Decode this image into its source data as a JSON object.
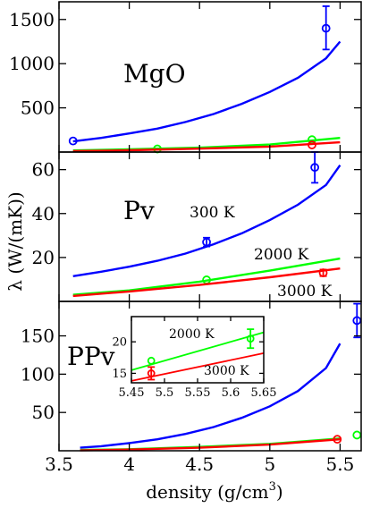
{
  "chart_data": {
    "type": "line",
    "xlabel": "density (g/cm",
    "xlabel_sup": "3",
    "xlabel_close": ")",
    "ylabel": "λ (W/(mK))",
    "xlim": [
      3.5,
      5.65
    ],
    "xticks": [
      3.5,
      4,
      4.5,
      5,
      5.5
    ],
    "xtick_labels": [
      "3.5",
      "4",
      "4.5",
      "5",
      "5.5"
    ],
    "colors": {
      "300 K": "#0000ff",
      "2000 K": "#00ff00",
      "3000 K": "#ff0000"
    },
    "panels": [
      {
        "label": "MgO",
        "ylim": [
          0,
          1700
        ],
        "yticks": [
          500,
          1000,
          1500
        ],
        "ytick_labels": [
          "500",
          "1000",
          "1500"
        ],
        "series": [
          {
            "key": "300 K",
            "curve": [
              [
                3.6,
                120
              ],
              [
                3.8,
                160
              ],
              [
                4.0,
                210
              ],
              [
                4.2,
                265
              ],
              [
                4.4,
                340
              ],
              [
                4.6,
                430
              ],
              [
                4.8,
                545
              ],
              [
                5.0,
                680
              ],
              [
                5.2,
                840
              ],
              [
                5.4,
                1060
              ],
              [
                5.5,
                1250
              ]
            ],
            "points": [
              {
                "x": 3.6,
                "y": 125
              },
              {
                "x": 5.4,
                "y": 1400,
                "err": [
                  1160,
                  1650
                ]
              }
            ]
          },
          {
            "key": "2000 K",
            "curve": [
              [
                3.6,
                18
              ],
              [
                4.0,
                30
              ],
              [
                4.5,
                50
              ],
              [
                5.0,
                85
              ],
              [
                5.5,
                160
              ]
            ],
            "points": [
              {
                "x": 4.2,
                "y": 35
              },
              {
                "x": 5.3,
                "y": 140
              }
            ]
          },
          {
            "key": "3000 K",
            "curve": [
              [
                3.6,
                10
              ],
              [
                4.0,
                20
              ],
              [
                4.5,
                38
              ],
              [
                5.0,
                62
              ],
              [
                5.5,
                110
              ]
            ],
            "points": [
              {
                "x": 5.3,
                "y": 80
              }
            ]
          }
        ]
      },
      {
        "label": "Pv",
        "ylim": [
          0,
          68
        ],
        "yticks": [
          20,
          40,
          60
        ],
        "ytick_labels": [
          "20",
          "40",
          "60"
        ],
        "annotations": [
          "300 K",
          "2000 K",
          "3000 K"
        ],
        "series": [
          {
            "key": "300 K",
            "curve": [
              [
                3.6,
                11.5
              ],
              [
                3.8,
                13.5
              ],
              [
                4.0,
                15.8
              ],
              [
                4.2,
                18.5
              ],
              [
                4.4,
                21.8
              ],
              [
                4.6,
                26
              ],
              [
                4.8,
                31
              ],
              [
                5.0,
                37
              ],
              [
                5.2,
                44
              ],
              [
                5.4,
                53
              ],
              [
                5.5,
                62
              ]
            ],
            "points": [
              {
                "x": 4.55,
                "y": 27,
                "err": [
                  25,
                  29
                ]
              },
              {
                "x": 5.32,
                "y": 61,
                "err": [
                  54,
                  68
                ]
              }
            ]
          },
          {
            "key": "2000 K",
            "curve": [
              [
                3.6,
                3
              ],
              [
                4.0,
                5
              ],
              [
                4.5,
                9
              ],
              [
                5.0,
                14
              ],
              [
                5.5,
                19.5
              ]
            ],
            "points": [
              {
                "x": 4.55,
                "y": 9.8
              }
            ]
          },
          {
            "key": "3000 K",
            "curve": [
              [
                3.6,
                2.5
              ],
              [
                4.0,
                4.5
              ],
              [
                4.5,
                7.5
              ],
              [
                5.0,
                11
              ],
              [
                5.5,
                15
              ]
            ],
            "points": [
              {
                "x": 5.38,
                "y": 13,
                "err": [
                  11.5,
                  14.5
                ]
              }
            ]
          }
        ]
      },
      {
        "label": "PPv",
        "ylim": [
          0,
          195
        ],
        "yticks": [
          50,
          100,
          150
        ],
        "ytick_labels": [
          "50",
          "100",
          "150"
        ],
        "series": [
          {
            "key": "300 K",
            "curve": [
              [
                3.65,
                4
              ],
              [
                3.8,
                6
              ],
              [
                4.0,
                10
              ],
              [
                4.2,
                15
              ],
              [
                4.4,
                22
              ],
              [
                4.6,
                31
              ],
              [
                4.8,
                43
              ],
              [
                5.0,
                58
              ],
              [
                5.2,
                78
              ],
              [
                5.4,
                108
              ],
              [
                5.5,
                140
              ]
            ],
            "points": [
              {
                "x": 5.62,
                "y": 170,
                "err": [
                  148,
                  192
                ]
              }
            ]
          },
          {
            "key": "2000 K",
            "curve": [
              [
                3.65,
                1
              ],
              [
                4.0,
                2
              ],
              [
                4.5,
                5
              ],
              [
                5.0,
                9
              ],
              [
                5.5,
                16
              ]
            ],
            "points": [
              {
                "x": 5.62,
                "y": 20.5
              }
            ]
          },
          {
            "key": "3000 K",
            "curve": [
              [
                3.65,
                0.5
              ],
              [
                4.0,
                1.5
              ],
              [
                4.5,
                4
              ],
              [
                5.0,
                8
              ],
              [
                5.5,
                15
              ]
            ],
            "points": [
              {
                "x": 5.48,
                "y": 15
              }
            ]
          }
        ],
        "inset": {
          "xlim": [
            5.45,
            5.65
          ],
          "ylim": [
            13.5,
            24
          ],
          "xticks": [
            5.45,
            5.5,
            5.55,
            5.6,
            5.65
          ],
          "xtick_labels": [
            "5.45",
            "5.5",
            "5.55",
            "5.6",
            "5.65"
          ],
          "yticks": [
            15,
            20
          ],
          "ytick_labels": [
            "15",
            "20"
          ],
          "annotations": [
            "2000 K",
            "3000 K"
          ],
          "series": [
            {
              "key": "2000 K",
              "curve": [
                [
                  5.45,
                  15.5
                ],
                [
                  5.65,
                  21.5
                ]
              ],
              "points": [
                {
                  "x": 5.48,
                  "y": 17
                },
                {
                  "x": 5.63,
                  "y": 20.5,
                  "err": [
                    19,
                    22
                  ]
                }
              ]
            },
            {
              "key": "3000 K",
              "curve": [
                [
                  5.45,
                  13.8
                ],
                [
                  5.65,
                  18.2
                ]
              ],
              "points": [
                {
                  "x": 5.48,
                  "y": 15,
                  "err": [
                    14,
                    16
                  ]
                }
              ]
            }
          ]
        }
      }
    ]
  }
}
